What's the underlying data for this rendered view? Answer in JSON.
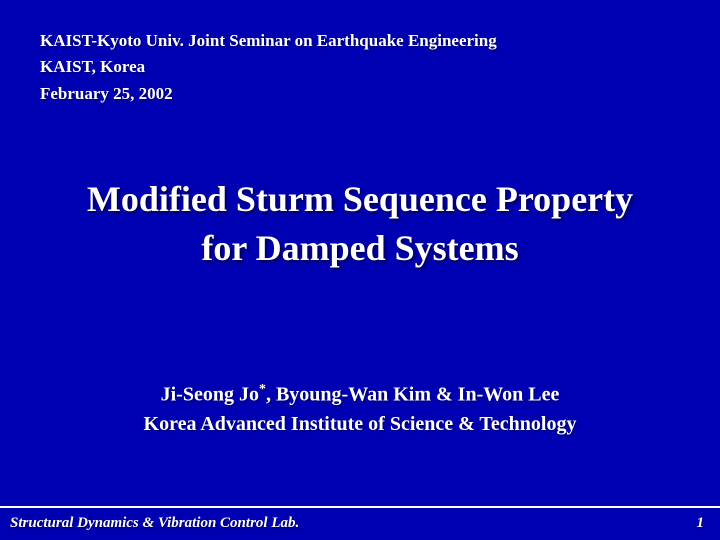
{
  "header": {
    "line1": "KAIST-Kyoto Univ. Joint Seminar on Earthquake Engineering",
    "line2": "KAIST, Korea",
    "line3": "February 25, 2002"
  },
  "title": {
    "line1": "Modified Sturm Sequence Property",
    "line2": "for Damped Systems"
  },
  "authors": {
    "line1_pre": "Ji-Seong Jo",
    "line1_sup": "*",
    "line1_post": ", Byoung-Wan Kim & In-Won Lee",
    "line2": "Korea Advanced Institute of Science & Technology"
  },
  "footer": {
    "lab": "Structural Dynamics & Vibration Control Lab.",
    "page": "1"
  },
  "style": {
    "background_color": "#0000b3",
    "text_color": "#ffffff",
    "header_fontsize_pt": 13,
    "title_fontsize_pt": 27,
    "author_fontsize_pt": 15,
    "footer_fontsize_pt": 11,
    "font_family": "serif",
    "title_weight": "bold",
    "footer_style": "italic",
    "has_text_shadow": true
  }
}
